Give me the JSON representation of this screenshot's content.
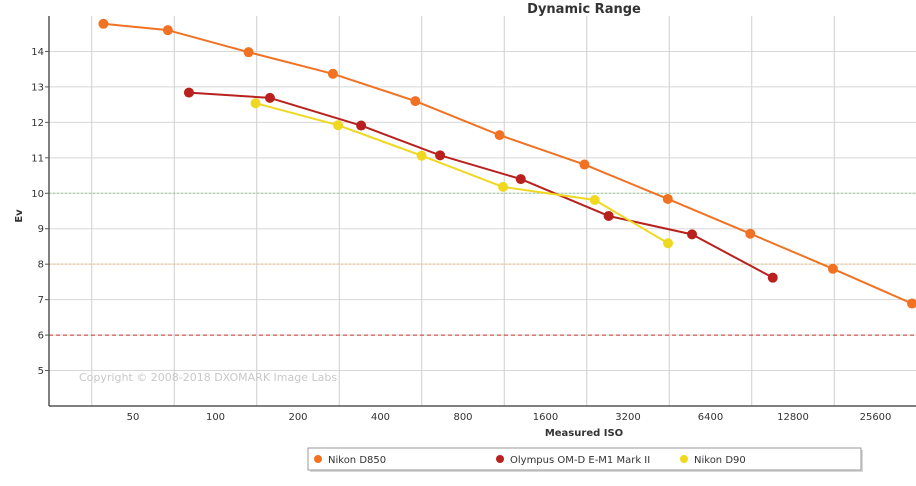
{
  "chart_data": {
    "type": "line",
    "title": "Dynamic Range",
    "xlabel": "Measured ISO",
    "ylabel": "Ev",
    "x_scale": "log2",
    "x_ticks": [
      50,
      100,
      200,
      400,
      800,
      1600,
      3200,
      6400,
      12800,
      25600
    ],
    "ylim": [
      4,
      15
    ],
    "y_ticks": [
      5,
      6,
      7,
      8,
      9,
      10,
      11,
      12,
      13,
      14
    ],
    "reference_lines": [
      {
        "y": 10,
        "color": "#8fce8f",
        "style": "dotted"
      },
      {
        "y": 8,
        "color": "#f0c070",
        "style": "dotted"
      },
      {
        "y": 6,
        "color": "#c0392b",
        "style": "dashed"
      }
    ],
    "copyright": "Copyright © 2008-2018 DXOMARK Image Labs",
    "series": [
      {
        "name": "Nikon D850",
        "color": "#f07222",
        "x": [
          39,
          67,
          132,
          268,
          536,
          1088,
          2220,
          4470,
          8940,
          17900,
          34800
        ],
        "y": [
          14.78,
          14.6,
          13.98,
          13.37,
          12.6,
          11.64,
          10.81,
          9.84,
          8.86,
          7.87,
          6.89
        ]
      },
      {
        "name": "Olympus OM-D E-M1 Mark II",
        "color": "#b8211e",
        "x": [
          80,
          158,
          340,
          660,
          1300,
          2720,
          5480,
          10800
        ],
        "y": [
          12.84,
          12.69,
          11.91,
          11.07,
          10.4,
          9.36,
          8.84,
          7.62
        ]
      },
      {
        "name": "Nikon D90",
        "color": "#f0d820",
        "x": [
          140,
          280,
          565,
          1120,
          2420,
          4480
        ],
        "y": [
          12.54,
          11.92,
          11.06,
          10.18,
          9.81,
          8.59
        ]
      }
    ]
  }
}
